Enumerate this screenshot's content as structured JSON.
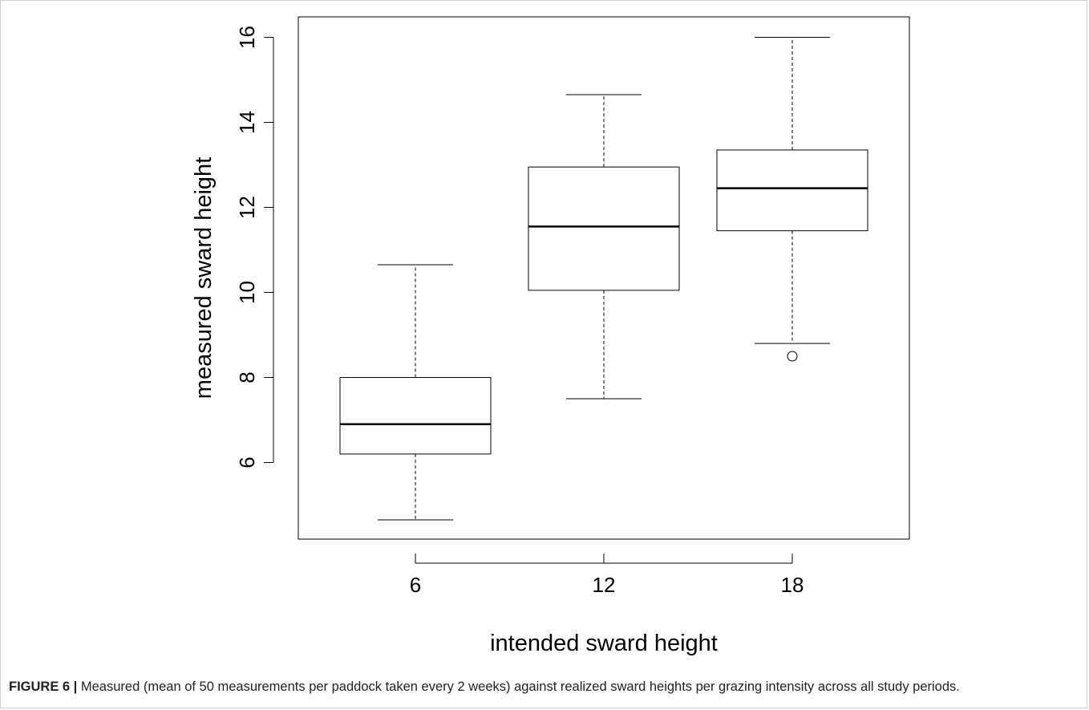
{
  "chart_data": {
    "type": "boxplot",
    "xlabel": "intended sward height",
    "ylabel": "measured sward height",
    "categories": [
      "6",
      "12",
      "18"
    ],
    "ylim": [
      4.2,
      16.4
    ],
    "y_ticks": [
      6,
      8,
      10,
      12,
      14,
      16
    ],
    "grid": false,
    "series": [
      {
        "category": "6",
        "whisker_low": 4.65,
        "q1": 6.2,
        "median": 6.9,
        "q3": 8.0,
        "whisker_high": 10.65,
        "outliers": []
      },
      {
        "category": "12",
        "whisker_low": 7.5,
        "q1": 10.05,
        "median": 11.55,
        "q3": 12.95,
        "whisker_high": 14.65,
        "outliers": []
      },
      {
        "category": "18",
        "whisker_low": 8.8,
        "q1": 11.45,
        "median": 12.45,
        "q3": 13.35,
        "whisker_high": 16.0,
        "outliers": [
          8.5
        ]
      }
    ]
  },
  "caption": {
    "label": "FIGURE 6 |",
    "text": "Measured (mean of 50 measurements per paddock taken every 2 weeks) against realized sward heights per grazing intensity across all study periods."
  }
}
